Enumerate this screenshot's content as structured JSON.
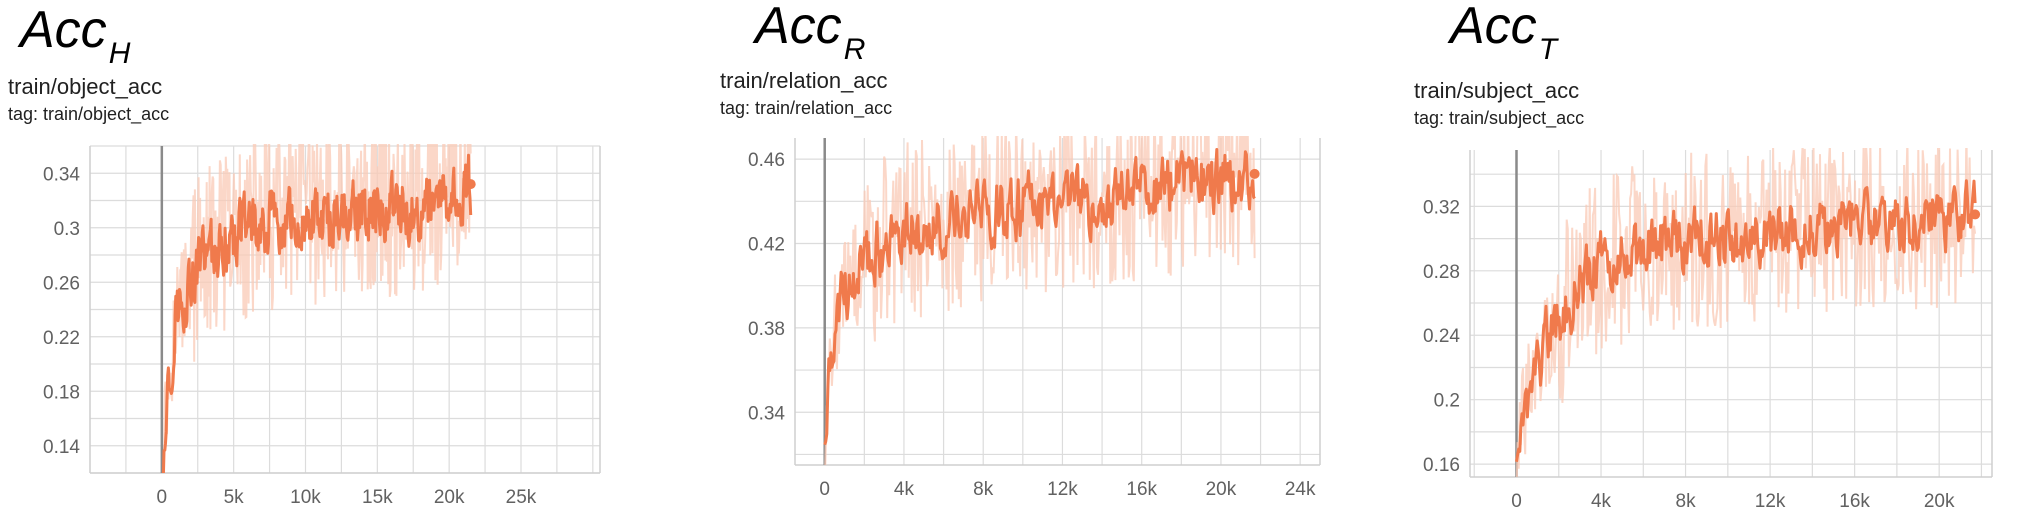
{
  "panels": [
    {
      "heading_main": "Acc",
      "heading_sub": "H",
      "title": "train/object_acc",
      "tag": "tag: train/object_acc"
    },
    {
      "heading_main": "Acc",
      "heading_sub": "R",
      "title": "train/relation_acc",
      "tag": "tag: train/relation_acc"
    },
    {
      "heading_main": "Acc",
      "heading_sub": "T",
      "title": "train/subject_acc",
      "tag": "tag: train/subject_acc"
    }
  ],
  "colors": {
    "smoothed": "#f07a4c",
    "raw": "#f9c9b6",
    "grid": "#dcdcdc",
    "axis": "#8a8a8a"
  },
  "chart_data": [
    {
      "type": "line",
      "title": "train/object_acc",
      "xlabel": "",
      "ylabel": "",
      "xlim": [
        -5000,
        30500
      ],
      "ylim": [
        0.12,
        0.36
      ],
      "xticks": [
        0,
        5000,
        10000,
        15000,
        20000,
        25000
      ],
      "xtick_labels": [
        "0",
        "5k",
        "10k",
        "15k",
        "20k",
        "25k"
      ],
      "yticks": [
        0.14,
        0.18,
        0.22,
        0.26,
        0.3,
        0.34
      ],
      "ytick_labels": [
        "0.14",
        "0.18",
        "0.22",
        "0.26",
        "0.3",
        "0.34"
      ],
      "x_end": 21500,
      "series": [
        {
          "x": [
            0,
            300,
            700,
            1000,
            1500,
            2000,
            2500,
            3000,
            4000,
            5000,
            6000,
            8000,
            10000,
            12000,
            15000,
            18000,
            21500
          ],
          "y": [
            0.12,
            0.17,
            0.21,
            0.24,
            0.25,
            0.26,
            0.27,
            0.28,
            0.285,
            0.29,
            0.3,
            0.305,
            0.305,
            0.31,
            0.315,
            0.312,
            0.332
          ]
        }
      ]
    },
    {
      "type": "line",
      "title": "train/relation_acc",
      "xlabel": "",
      "ylabel": "",
      "xlim": [
        -1500,
        25000
      ],
      "ylim": [
        0.315,
        0.47
      ],
      "xticks": [
        0,
        4000,
        8000,
        12000,
        16000,
        20000,
        24000
      ],
      "xtick_labels": [
        "0",
        "4k",
        "8k",
        "12k",
        "16k",
        "20k",
        "24k"
      ],
      "yticks": [
        0.34,
        0.38,
        0.42,
        0.46
      ],
      "ytick_labels": [
        "0.34",
        "0.38",
        "0.42",
        "0.46"
      ],
      "x_end": 21700,
      "series": [
        {
          "x": [
            0,
            200,
            500,
            800,
            1200,
            2000,
            3000,
            4000,
            6000,
            8000,
            10000,
            12000,
            14000,
            16000,
            18000,
            20000,
            21700
          ],
          "y": [
            0.315,
            0.35,
            0.38,
            0.39,
            0.4,
            0.41,
            0.42,
            0.425,
            0.43,
            0.435,
            0.438,
            0.44,
            0.44,
            0.445,
            0.448,
            0.45,
            0.453
          ]
        }
      ]
    },
    {
      "type": "line",
      "title": "train/subject_acc",
      "xlabel": "",
      "ylabel": "",
      "xlim": [
        -2200,
        22500
      ],
      "ylim": [
        0.152,
        0.355
      ],
      "xticks": [
        0,
        4000,
        8000,
        12000,
        16000,
        20000
      ],
      "xtick_labels": [
        "0",
        "4k",
        "8k",
        "12k",
        "16k",
        "20k"
      ],
      "yticks": [
        0.16,
        0.2,
        0.24,
        0.28,
        0.32
      ],
      "ytick_labels": [
        "0.16",
        "0.2",
        "0.24",
        "0.28",
        "0.32"
      ],
      "x_end": 21700,
      "series": [
        {
          "x": [
            0,
            300,
            700,
            1000,
            1500,
            2000,
            3000,
            4000,
            5000,
            6000,
            8000,
            10000,
            12000,
            14000,
            16000,
            18000,
            21700
          ],
          "y": [
            0.155,
            0.19,
            0.21,
            0.22,
            0.24,
            0.25,
            0.27,
            0.285,
            0.29,
            0.295,
            0.3,
            0.3,
            0.302,
            0.305,
            0.31,
            0.31,
            0.315
          ]
        }
      ]
    }
  ]
}
